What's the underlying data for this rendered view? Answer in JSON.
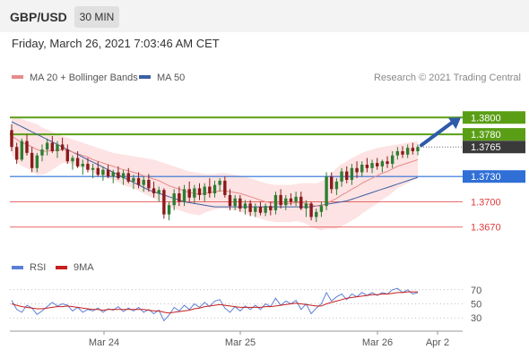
{
  "header": {
    "pair": "GBP/USD",
    "timeframe": "30 MIN"
  },
  "datetime": "Friday, March 26, 2021 7:03:46 AM CET",
  "legend": {
    "ma20": "MA 20 + Bollinger Bands",
    "ma50": "MA 50",
    "credit": "Research © 2021 Trading Central"
  },
  "rsi_legend": {
    "rsi": "RSI",
    "ma9": "9MA"
  },
  "colors": {
    "candle_up": "#2e7d32",
    "candle_down": "#8b1a1a",
    "resistance": "#5a9e16",
    "current": "#3a3a3a",
    "pivot": "#2f6fd6",
    "support": "#e23b3b",
    "ma20": "#e88a8a",
    "ma50": "#3b5fa3",
    "band": "#fde3e3",
    "rsi": "#5b7fd6",
    "rsi_ma": "#c81e1e",
    "arrow": "#2e5aa8"
  },
  "chart_data": [
    {
      "type": "candlestick",
      "title": "GBP/USD",
      "timeframe": "30 MIN",
      "ylim": [
        1.364,
        1.383
      ],
      "x_ticks": [
        "Mar 24",
        "Mar 25",
        "Mar 26",
        "Apr 2"
      ],
      "candles": [
        [
          1.3785,
          1.3792,
          1.376,
          1.3765
        ],
        [
          1.3765,
          1.377,
          1.3745,
          1.375
        ],
        [
          1.375,
          1.3775,
          1.3748,
          1.3772
        ],
        [
          1.3772,
          1.378,
          1.3755,
          1.3758
        ],
        [
          1.3758,
          1.3765,
          1.3735,
          1.374
        ],
        [
          1.374,
          1.3758,
          1.3735,
          1.3755
        ],
        [
          1.3755,
          1.3768,
          1.3748,
          1.3762
        ],
        [
          1.3762,
          1.3775,
          1.3755,
          1.377
        ],
        [
          1.377,
          1.3778,
          1.3758,
          1.376
        ],
        [
          1.376,
          1.3772,
          1.3752,
          1.3768
        ],
        [
          1.3768,
          1.3776,
          1.376,
          1.3762
        ],
        [
          1.3762,
          1.3768,
          1.3745,
          1.3748
        ],
        [
          1.3748,
          1.3755,
          1.3738,
          1.3752
        ],
        [
          1.3752,
          1.376,
          1.374,
          1.3742
        ],
        [
          1.3742,
          1.375,
          1.3732,
          1.3745
        ],
        [
          1.3745,
          1.3752,
          1.3735,
          1.3738
        ],
        [
          1.3738,
          1.3745,
          1.3728,
          1.374
        ],
        [
          1.374,
          1.3748,
          1.373,
          1.3732
        ],
        [
          1.3732,
          1.3742,
          1.3725,
          1.3738
        ],
        [
          1.3738,
          1.3744,
          1.3728,
          1.373
        ],
        [
          1.373,
          1.3738,
          1.3722,
          1.3735
        ],
        [
          1.3735,
          1.3742,
          1.3726,
          1.3728
        ],
        [
          1.3728,
          1.3738,
          1.372,
          1.3734
        ],
        [
          1.3734,
          1.374,
          1.3722,
          1.3724
        ],
        [
          1.3724,
          1.3732,
          1.3715,
          1.3728
        ],
        [
          1.3728,
          1.3735,
          1.3716,
          1.372
        ],
        [
          1.372,
          1.373,
          1.3712,
          1.3726
        ],
        [
          1.3726,
          1.3733,
          1.3712,
          1.3716
        ],
        [
          1.3716,
          1.3724,
          1.3705,
          1.371
        ],
        [
          1.371,
          1.3718,
          1.37,
          1.3714
        ],
        [
          1.3714,
          1.3716,
          1.368,
          1.3685
        ],
        [
          1.3685,
          1.37,
          1.3678,
          1.3696
        ],
        [
          1.3696,
          1.3715,
          1.369,
          1.371
        ],
        [
          1.371,
          1.3718,
          1.3695,
          1.37
        ],
        [
          1.37,
          1.372,
          1.3695,
          1.3715
        ],
        [
          1.3715,
          1.3724,
          1.37,
          1.3705
        ],
        [
          1.3705,
          1.372,
          1.3698,
          1.3716
        ],
        [
          1.3716,
          1.3722,
          1.3702,
          1.3708
        ],
        [
          1.3708,
          1.3722,
          1.37,
          1.3718
        ],
        [
          1.3718,
          1.3728,
          1.3705,
          1.371
        ],
        [
          1.371,
          1.3725,
          1.3705,
          1.372
        ],
        [
          1.372,
          1.3728,
          1.3712,
          1.3725
        ],
        [
          1.3725,
          1.373,
          1.3705,
          1.3708
        ],
        [
          1.3708,
          1.3715,
          1.369,
          1.3695
        ],
        [
          1.3695,
          1.3708,
          1.369,
          1.3704
        ],
        [
          1.3704,
          1.3708,
          1.3688,
          1.3692
        ],
        [
          1.3692,
          1.3702,
          1.3685,
          1.3698
        ],
        [
          1.3698,
          1.3702,
          1.3683,
          1.3688
        ],
        [
          1.3688,
          1.3698,
          1.3682,
          1.3694
        ],
        [
          1.3694,
          1.37,
          1.3684,
          1.3687
        ],
        [
          1.3687,
          1.3698,
          1.3683,
          1.3695
        ],
        [
          1.3695,
          1.37,
          1.3684,
          1.369
        ],
        [
          1.369,
          1.3712,
          1.3685,
          1.3708
        ],
        [
          1.3708,
          1.3715,
          1.3692,
          1.3696
        ],
        [
          1.3696,
          1.3708,
          1.369,
          1.3704
        ],
        [
          1.3704,
          1.371,
          1.3696,
          1.37
        ],
        [
          1.37,
          1.3712,
          1.3695,
          1.3706
        ],
        [
          1.3706,
          1.3712,
          1.369,
          1.3692
        ],
        [
          1.3692,
          1.3702,
          1.3682,
          1.3698
        ],
        [
          1.3698,
          1.37,
          1.3678,
          1.3682
        ],
        [
          1.3682,
          1.3692,
          1.3676,
          1.3688
        ],
        [
          1.3688,
          1.37,
          1.3682,
          1.3695
        ],
        [
          1.3695,
          1.3735,
          1.369,
          1.373
        ],
        [
          1.373,
          1.3735,
          1.371,
          1.3715
        ],
        [
          1.3715,
          1.3728,
          1.3708,
          1.3724
        ],
        [
          1.3724,
          1.374,
          1.3718,
          1.3736
        ],
        [
          1.3736,
          1.3742,
          1.3722,
          1.3726
        ],
        [
          1.3726,
          1.3745,
          1.372,
          1.374
        ],
        [
          1.374,
          1.3748,
          1.3728,
          1.3735
        ],
        [
          1.3735,
          1.3748,
          1.373,
          1.3744
        ],
        [
          1.3744,
          1.3752,
          1.3735,
          1.374
        ],
        [
          1.374,
          1.375,
          1.3734,
          1.3746
        ],
        [
          1.3746,
          1.3752,
          1.3738,
          1.3742
        ],
        [
          1.3742,
          1.375,
          1.3735,
          1.3748
        ],
        [
          1.3748,
          1.3754,
          1.374,
          1.3745
        ],
        [
          1.3745,
          1.376,
          1.374,
          1.3755
        ],
        [
          1.3755,
          1.3765,
          1.375,
          1.376
        ],
        [
          1.376,
          1.3766,
          1.3752,
          1.3756
        ],
        [
          1.3756,
          1.3768,
          1.3752,
          1.3764
        ],
        [
          1.3764,
          1.377,
          1.3756,
          1.376
        ],
        [
          1.376,
          1.3768,
          1.3755,
          1.3765
        ]
      ],
      "ma20": [
        1.3778,
        1.3774,
        1.377,
        1.3768,
        1.3765,
        1.3762,
        1.376,
        1.376,
        1.3761,
        1.3761,
        1.3762,
        1.3761,
        1.3759,
        1.3757,
        1.3755,
        1.3753,
        1.375,
        1.3748,
        1.3746,
        1.3744,
        1.3742,
        1.374,
        1.3738,
        1.3737,
        1.3735,
        1.3733,
        1.3731,
        1.3729,
        1.3727,
        1.3725,
        1.3722,
        1.3719,
        1.3717,
        1.3715,
        1.3713,
        1.3711,
        1.371,
        1.3709,
        1.371,
        1.3711,
        1.3712,
        1.3713,
        1.3713,
        1.3712,
        1.3711,
        1.371,
        1.3708,
        1.3706,
        1.3704,
        1.3702,
        1.37,
        1.3699,
        1.3698,
        1.3698,
        1.3698,
        1.3698,
        1.3699,
        1.3699,
        1.3698,
        1.3696,
        1.3695,
        1.3695,
        1.3698,
        1.3701,
        1.3704,
        1.3708,
        1.3711,
        1.3715,
        1.3718,
        1.3722,
        1.3725,
        1.3728,
        1.3731,
        1.3734,
        1.3736,
        1.3739,
        1.3742,
        1.3744,
        1.3746,
        1.3748,
        1.375
      ],
      "ma20_band_upper": [
        1.38,
        1.38,
        1.3798,
        1.3796,
        1.3794,
        1.3792,
        1.3788,
        1.3786,
        1.3783,
        1.378,
        1.3778,
        1.3776,
        1.3774,
        1.3772,
        1.377,
        1.3768,
        1.3766,
        1.3764,
        1.3762,
        1.376,
        1.3758,
        1.3757,
        1.3756,
        1.3755,
        1.3754,
        1.3753,
        1.3752,
        1.3751,
        1.375,
        1.3748,
        1.3746,
        1.3744,
        1.3742,
        1.374,
        1.3738,
        1.3736,
        1.3735,
        1.3734,
        1.3733,
        1.3733,
        1.3733,
        1.3734,
        1.3734,
        1.3733,
        1.3732,
        1.3731,
        1.373,
        1.3728,
        1.3726,
        1.3724,
        1.3722,
        1.3721,
        1.372,
        1.372,
        1.372,
        1.372,
        1.3721,
        1.3722,
        1.3722,
        1.3722,
        1.3722,
        1.3724,
        1.3728,
        1.3734,
        1.374,
        1.3745,
        1.3748,
        1.3752,
        1.3755,
        1.3758,
        1.376,
        1.3762,
        1.3764,
        1.3765,
        1.3766,
        1.3767,
        1.3768,
        1.3769,
        1.377,
        1.3771,
        1.3772
      ],
      "ma20_band_lower": [
        1.3756,
        1.3748,
        1.3742,
        1.374,
        1.3736,
        1.3732,
        1.3732,
        1.3734,
        1.3738,
        1.3742,
        1.3746,
        1.3746,
        1.3744,
        1.3742,
        1.374,
        1.3738,
        1.3734,
        1.3732,
        1.373,
        1.3728,
        1.3726,
        1.3723,
        1.372,
        1.3718,
        1.3716,
        1.3713,
        1.371,
        1.3707,
        1.3704,
        1.3702,
        1.3698,
        1.3694,
        1.3692,
        1.369,
        1.3688,
        1.3686,
        1.3685,
        1.3684,
        1.3687,
        1.3689,
        1.3691,
        1.3692,
        1.3692,
        1.3691,
        1.369,
        1.3689,
        1.3686,
        1.3684,
        1.3682,
        1.368,
        1.3678,
        1.3677,
        1.3676,
        1.3676,
        1.3676,
        1.3676,
        1.3677,
        1.3676,
        1.3674,
        1.367,
        1.3668,
        1.3666,
        1.3668,
        1.3668,
        1.3668,
        1.3671,
        1.3674,
        1.3678,
        1.3681,
        1.3686,
        1.369,
        1.3694,
        1.3698,
        1.3703,
        1.3706,
        1.3711,
        1.3716,
        1.3719,
        1.3722,
        1.3725,
        1.3728
      ],
      "ma50": [
        1.3795,
        1.3792,
        1.3789,
        1.3786,
        1.3783,
        1.378,
        1.3777,
        1.3774,
        1.3771,
        1.3768,
        1.3765,
        1.3762,
        1.3759,
        1.3756,
        1.3753,
        1.375,
        1.3747,
        1.3744,
        1.3741,
        1.3738,
        1.3735,
        1.3732,
        1.3729,
        1.3726,
        1.3723,
        1.372,
        1.3717,
        1.3714,
        1.3712,
        1.371,
        1.3708,
        1.3706,
        1.3704,
        1.3702,
        1.37,
        1.3699,
        1.3698,
        1.3697,
        1.3696,
        1.3695,
        1.3694,
        1.3694,
        1.3694,
        1.3694,
        1.3694,
        1.3694,
        1.3694,
        1.3694,
        1.3694,
        1.3694,
        1.3694,
        1.3694,
        1.3694,
        1.3694,
        1.3694,
        1.3694,
        1.3694,
        1.3694,
        1.3694,
        1.3694,
        1.3695,
        1.3696,
        1.3697,
        1.3698,
        1.3699,
        1.37,
        1.3701,
        1.3703,
        1.3705,
        1.3707,
        1.3709,
        1.3711,
        1.3713,
        1.3715,
        1.3717,
        1.3719,
        1.3721,
        1.3723,
        1.3725,
        1.3727,
        1.3729
      ],
      "levels": [
        {
          "value": 1.38,
          "label": "1.3800",
          "kind": "resistance"
        },
        {
          "value": 1.378,
          "label": "1.3780",
          "kind": "resistance"
        },
        {
          "value": 1.3765,
          "label": "1.3765",
          "kind": "current"
        },
        {
          "value": 1.373,
          "label": "1.3730",
          "kind": "pivot"
        },
        {
          "value": 1.37,
          "label": "1.3700",
          "kind": "support"
        },
        {
          "value": 1.367,
          "label": "1.3670",
          "kind": "support"
        }
      ],
      "arrow_target": 1.38,
      "legend": [
        "MA 20 + Bollinger Bands",
        "MA 50"
      ]
    },
    {
      "type": "line",
      "title": "RSI",
      "ylim": [
        15,
        85
      ],
      "y_ticks": [
        70,
        50,
        30
      ],
      "x_ticks": [
        "Mar 24",
        "Mar 25",
        "Mar 26",
        "Apr 2"
      ],
      "series": [
        {
          "name": "RSI",
          "values": [
            55,
            42,
            38,
            48,
            44,
            35,
            40,
            46,
            52,
            47,
            50,
            48,
            40,
            45,
            38,
            42,
            40,
            44,
            38,
            43,
            41,
            46,
            39,
            44,
            40,
            45,
            38,
            42,
            36,
            41,
            26,
            34,
            45,
            40,
            48,
            42,
            50,
            45,
            52,
            46,
            54,
            56,
            44,
            38,
            46,
            40,
            47,
            42,
            48,
            42,
            50,
            46,
            58,
            48,
            54,
            50,
            55,
            42,
            50,
            36,
            44,
            50,
            66,
            54,
            60,
            64,
            56,
            64,
            60,
            66,
            62,
            66,
            62,
            66,
            64,
            70,
            72,
            66,
            70,
            64,
            66
          ]
        },
        {
          "name": "9MA",
          "values": [
            50,
            48,
            46,
            45,
            44,
            43,
            43,
            44,
            45,
            46,
            46,
            47,
            46,
            45,
            44,
            43,
            42,
            42,
            41,
            42,
            42,
            42,
            42,
            42,
            42,
            42,
            42,
            41,
            40,
            40,
            38,
            37,
            38,
            39,
            40,
            41,
            43,
            44,
            46,
            47,
            48,
            49,
            48,
            47,
            46,
            45,
            45,
            45,
            45,
            45,
            46,
            46,
            47,
            48,
            49,
            50,
            51,
            50,
            49,
            48,
            47,
            47,
            50,
            52,
            54,
            56,
            58,
            59,
            60,
            61,
            62,
            63,
            63,
            64,
            64,
            65,
            66,
            66,
            67,
            67,
            67
          ]
        }
      ],
      "legend": [
        "RSI",
        "9MA"
      ]
    }
  ]
}
